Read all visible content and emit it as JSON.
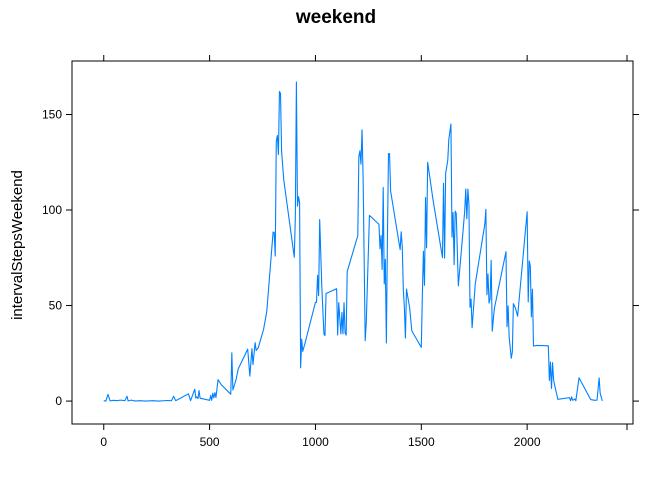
{
  "chart_data": {
    "type": "line",
    "title": "weekend",
    "xlabel": "",
    "ylabel": "intervalStepsWeekend",
    "xlim": [
      -150,
      2500
    ],
    "ylim": [
      -12,
      178
    ],
    "x_ticks": [
      0,
      500,
      1000,
      1500,
      2000
    ],
    "y_ticks": [
      0,
      50,
      100,
      150
    ],
    "line_color": "#0080ff",
    "series": [
      {
        "name": "",
        "points": [
          [
            0,
            0.2
          ],
          [
            10,
            0
          ],
          [
            20,
            3.5
          ],
          [
            30,
            0.1
          ],
          [
            45,
            0.4
          ],
          [
            60,
            0.2
          ],
          [
            80,
            0.5
          ],
          [
            100,
            0.2
          ],
          [
            110,
            2.5
          ],
          [
            115,
            0.1
          ],
          [
            130,
            0.5
          ],
          [
            150,
            0
          ],
          [
            170,
            0.2
          ],
          [
            200,
            0
          ],
          [
            230,
            0.2
          ],
          [
            260,
            0
          ],
          [
            300,
            0.3
          ],
          [
            320,
            0.2
          ],
          [
            330,
            2.5
          ],
          [
            340,
            0.2
          ],
          [
            355,
            1.1
          ],
          [
            400,
            3.8
          ],
          [
            410,
            0.2
          ],
          [
            420,
            3.2
          ],
          [
            430,
            6.2
          ],
          [
            435,
            1.6
          ],
          [
            440,
            2.2
          ],
          [
            445,
            1.3
          ],
          [
            450,
            5.5
          ],
          [
            455,
            1.5
          ],
          [
            500,
            0.4
          ],
          [
            505,
            2.9
          ],
          [
            510,
            0.4
          ],
          [
            515,
            4.1
          ],
          [
            520,
            1.7
          ],
          [
            525,
            4.4
          ],
          [
            530,
            1.9
          ],
          [
            540,
            11.2
          ],
          [
            555,
            8.6
          ],
          [
            600,
            3.6
          ],
          [
            605,
            25.2
          ],
          [
            610,
            5.8
          ],
          [
            625,
            11.2
          ],
          [
            635,
            16.8
          ],
          [
            680,
            27.2
          ],
          [
            690,
            13.1
          ],
          [
            700,
            27.4
          ],
          [
            705,
            19.1
          ],
          [
            715,
            30.6
          ],
          [
            720,
            26.5
          ],
          [
            730,
            27.9
          ],
          [
            740,
            31.8
          ],
          [
            755,
            37.6
          ],
          [
            770,
            46.8
          ],
          [
            800,
            88.5
          ],
          [
            805,
            88.2
          ],
          [
            810,
            75.9
          ],
          [
            815,
            136
          ],
          [
            820,
            139
          ],
          [
            825,
            129
          ],
          [
            830,
            162
          ],
          [
            835,
            161
          ],
          [
            840,
            131
          ],
          [
            850,
            116
          ],
          [
            900,
            75.3
          ],
          [
            905,
            96.3
          ],
          [
            910,
            167
          ],
          [
            915,
            102
          ],
          [
            920,
            107
          ],
          [
            925,
            104
          ],
          [
            930,
            17.4
          ],
          [
            935,
            32.4
          ],
          [
            940,
            26
          ],
          [
            950,
            30
          ],
          [
            1000,
            51.7
          ],
          [
            1005,
            51.7
          ],
          [
            1010,
            65.8
          ],
          [
            1015,
            55.2
          ],
          [
            1020,
            95
          ],
          [
            1025,
            77.6
          ],
          [
            1030,
            60
          ],
          [
            1040,
            35.1
          ],
          [
            1045,
            34.3
          ],
          [
            1050,
            56.3
          ],
          [
            1100,
            58.8
          ],
          [
            1105,
            34.6
          ],
          [
            1110,
            51.5
          ],
          [
            1115,
            43.3
          ],
          [
            1120,
            35.2
          ],
          [
            1125,
            46.4
          ],
          [
            1130,
            35.2
          ],
          [
            1135,
            51.5
          ],
          [
            1140,
            35.6
          ],
          [
            1145,
            34.5
          ],
          [
            1150,
            67.8
          ],
          [
            1200,
            86.6
          ],
          [
            1205,
            128
          ],
          [
            1210,
            131
          ],
          [
            1215,
            124
          ],
          [
            1220,
            142
          ],
          [
            1225,
            118
          ],
          [
            1235,
            31.6
          ],
          [
            1240,
            41.1
          ],
          [
            1255,
            97.2
          ],
          [
            1300,
            92.5
          ],
          [
            1305,
            79.7
          ],
          [
            1310,
            86.7
          ],
          [
            1315,
            68.9
          ],
          [
            1320,
            111.8
          ],
          [
            1325,
            61.3
          ],
          [
            1330,
            74.2
          ],
          [
            1335,
            30.4
          ],
          [
            1340,
            85.9
          ],
          [
            1345,
            129.5
          ],
          [
            1350,
            129.5
          ],
          [
            1355,
            110
          ],
          [
            1400,
            79.3
          ],
          [
            1405,
            88.6
          ],
          [
            1410,
            80.9
          ],
          [
            1415,
            58.8
          ],
          [
            1420,
            48.9
          ],
          [
            1425,
            33
          ],
          [
            1430,
            58.6
          ],
          [
            1445,
            48.8
          ],
          [
            1455,
            36.8
          ],
          [
            1500,
            28.1
          ],
          [
            1505,
            55.6
          ],
          [
            1510,
            78.4
          ],
          [
            1515,
            60.6
          ],
          [
            1520,
            106.6
          ],
          [
            1525,
            80.2
          ],
          [
            1530,
            125
          ],
          [
            1555,
            105.6
          ],
          [
            1600,
            75.1
          ],
          [
            1605,
            114
          ],
          [
            1610,
            74.8
          ],
          [
            1615,
            119
          ],
          [
            1625,
            126
          ],
          [
            1630,
            137
          ],
          [
            1640,
            145
          ],
          [
            1645,
            85.8
          ],
          [
            1650,
            98.7
          ],
          [
            1655,
            71.4
          ],
          [
            1660,
            99.4
          ],
          [
            1665,
            98.4
          ],
          [
            1675,
            60.3
          ],
          [
            1700,
            92.8
          ],
          [
            1705,
            99.5
          ],
          [
            1710,
            111
          ],
          [
            1715,
            95.4
          ],
          [
            1720,
            111
          ],
          [
            1725,
            103
          ],
          [
            1730,
            49
          ],
          [
            1735,
            53.4
          ],
          [
            1740,
            38.4
          ],
          [
            1755,
            61.4
          ],
          [
            1800,
            92.6
          ],
          [
            1805,
            100.4
          ],
          [
            1810,
            55.7
          ],
          [
            1815,
            66.5
          ],
          [
            1820,
            51.3
          ],
          [
            1825,
            53.4
          ],
          [
            1830,
            73.7
          ],
          [
            1835,
            36.6
          ],
          [
            1845,
            48.4
          ],
          [
            1900,
            78.2
          ],
          [
            1905,
            38.9
          ],
          [
            1910,
            49.8
          ],
          [
            1915,
            33.5
          ],
          [
            1925,
            22.4
          ],
          [
            1930,
            25.7
          ],
          [
            1935,
            51
          ],
          [
            1945,
            48.6
          ],
          [
            1955,
            44.4
          ],
          [
            2000,
            99.1
          ],
          [
            2005,
            51.9
          ],
          [
            2010,
            73.3
          ],
          [
            2015,
            70.6
          ],
          [
            2020,
            44.1
          ],
          [
            2025,
            58.6
          ],
          [
            2030,
            28.8
          ],
          [
            2045,
            29.1
          ],
          [
            2100,
            28.9
          ],
          [
            2105,
            10.8
          ],
          [
            2110,
            20.4
          ],
          [
            2115,
            6.6
          ],
          [
            2120,
            20.1
          ],
          [
            2125,
            11.1
          ],
          [
            2130,
            8.3
          ],
          [
            2145,
            0.9
          ],
          [
            2200,
            1.8
          ],
          [
            2205,
            0.2
          ],
          [
            2210,
            2.2
          ],
          [
            2215,
            0.4
          ],
          [
            2225,
            1.1
          ],
          [
            2230,
            0.2
          ],
          [
            2245,
            12.2
          ],
          [
            2300,
            0.8
          ],
          [
            2310,
            0.6
          ],
          [
            2320,
            0.4
          ],
          [
            2330,
            0.5
          ],
          [
            2340,
            12.1
          ],
          [
            2345,
            4
          ],
          [
            2355,
            0.1
          ]
        ]
      }
    ]
  }
}
